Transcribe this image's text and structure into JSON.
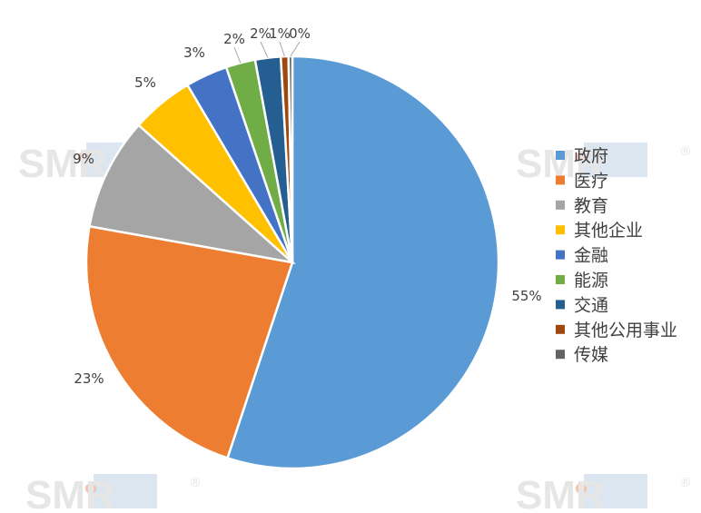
{
  "watermark": {
    "text": "SMR",
    "registered_mark": "®",
    "text_color": "#e6e6e6",
    "accent_color": "#f6c1a8",
    "bar_color": "#dbe6f1"
  },
  "chart_data": {
    "type": "pie",
    "start_angle_deg": 0,
    "direction": "clockwise",
    "legend_position": "right",
    "slices": [
      {
        "label": "政府",
        "value": 55.1,
        "display": "55%",
        "color": "#5b9bd5"
      },
      {
        "label": "医疗",
        "value": 22.7,
        "display": "23%",
        "color": "#ed7d31"
      },
      {
        "label": "教育",
        "value": 8.8,
        "display": "9%",
        "color": "#a5a5a5"
      },
      {
        "label": "其他企业",
        "value": 4.9,
        "display": "5%",
        "color": "#ffc000"
      },
      {
        "label": "金融",
        "value": 3.3,
        "display": "3%",
        "color": "#4472c4"
      },
      {
        "label": "能源",
        "value": 2.3,
        "display": "2%",
        "color": "#70ad47"
      },
      {
        "label": "交通",
        "value": 2.0,
        "display": "2%",
        "color": "#255e91"
      },
      {
        "label": "其他公用事业",
        "value": 0.6,
        "display": "1%",
        "color": "#9e480e"
      },
      {
        "label": "传媒",
        "value": 0.3,
        "display": "0%",
        "color": "#636363"
      }
    ]
  }
}
